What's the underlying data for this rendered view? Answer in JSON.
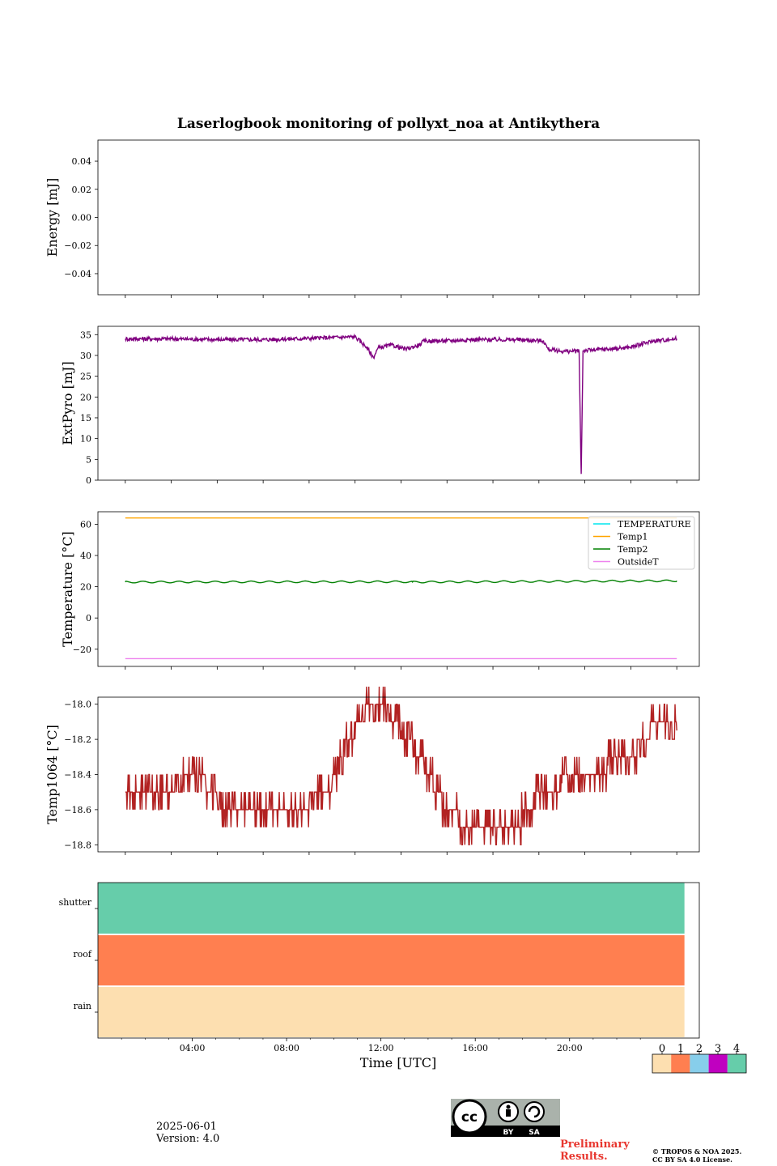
{
  "figure": {
    "title": "Laserlogbook monitoring of pollyxt_noa at Antikythera",
    "xlabel": "Time [UTC]",
    "x_tick_labels": [
      "04:00",
      "08:00",
      "12:00",
      "16:00",
      "20:00"
    ]
  },
  "chart_data": [
    {
      "type": "line",
      "ylabel": "Energy [mJ]",
      "ylim": [
        -0.055,
        0.055
      ],
      "yticks": [
        0.04,
        0.02,
        0.0,
        -0.02,
        -0.04
      ],
      "ytick_labels": [
        "0.04",
        "0.02",
        "0.00",
        "−0.02",
        "−0.04"
      ],
      "series": []
    },
    {
      "type": "line",
      "ylabel": "ExtPyro [mJ]",
      "ylim": [
        0,
        37
      ],
      "yticks": [
        0,
        5,
        10,
        15,
        20,
        25,
        30,
        35
      ],
      "ytick_labels": [
        "0",
        "5",
        "10",
        "15",
        "20",
        "25",
        "30",
        "35"
      ],
      "series": [
        {
          "color": "#800080",
          "points": [
            [
              1.0,
              34.0
            ],
            [
              3.0,
              34.0
            ],
            [
              5.0,
              33.8
            ],
            [
              7.0,
              33.8
            ],
            [
              9.0,
              34.1
            ],
            [
              11.0,
              34.5
            ],
            [
              11.5,
              32.0
            ],
            [
              11.8,
              29.5
            ],
            [
              12.0,
              31.8
            ],
            [
              12.6,
              32.5
            ],
            [
              13.2,
              31.5
            ],
            [
              13.8,
              32.5
            ],
            [
              14.0,
              33.5
            ],
            [
              15.0,
              33.5
            ],
            [
              16.0,
              33.8
            ],
            [
              18.0,
              33.8
            ],
            [
              19.2,
              33.5
            ],
            [
              19.4,
              31.5
            ],
            [
              20.0,
              31.0
            ],
            [
              20.5,
              31.0
            ],
            [
              20.75,
              31.0
            ],
            [
              20.84,
              1.5
            ],
            [
              20.92,
              31.2
            ],
            [
              21.3,
              31.3
            ],
            [
              22.0,
              31.5
            ],
            [
              23.0,
              32.0
            ],
            [
              24.0,
              33.5
            ],
            [
              25.0,
              34.0
            ]
          ],
          "noise": 1.0
        }
      ]
    },
    {
      "type": "line",
      "ylabel": "Temperature [°C]",
      "ylim": [
        -31,
        68
      ],
      "yticks": [
        60,
        40,
        20,
        0,
        -20
      ],
      "ytick_labels": [
        "60",
        "40",
        "20",
        "0",
        "−20"
      ],
      "legend": {
        "placement": "upper-right",
        "entries": [
          "TEMPERATURE",
          "Temp1",
          "Temp2",
          "OutsideT"
        ]
      },
      "series": [
        {
          "name": "TEMPERATURE",
          "color": "#00e5ee",
          "points": []
        },
        {
          "name": "Temp1",
          "color": "#ffa500",
          "points": [
            [
              1.0,
              64.0
            ],
            [
              25.0,
              64.0
            ]
          ]
        },
        {
          "name": "Temp2",
          "color": "#008000",
          "points": [
            [
              1.0,
              23.0
            ],
            [
              13.0,
              23.2
            ],
            [
              13.5,
              23.0
            ],
            [
              25.0,
              23.8
            ]
          ],
          "wave": 0.9
        },
        {
          "name": "OutsideT",
          "color": "#ee82ee",
          "points": [
            [
              1.0,
              -26.0
            ],
            [
              25.0,
              -26.0
            ]
          ]
        }
      ]
    },
    {
      "type": "line",
      "ylabel": "Temp1064 [°C]",
      "ylim": [
        -18.84,
        -17.96
      ],
      "yticks": [
        -18.0,
        -18.2,
        -18.4,
        -18.6,
        -18.8
      ],
      "ytick_labels": [
        "−18.0",
        "−18.2",
        "−18.4",
        "−18.6",
        "−18.8"
      ],
      "series": [
        {
          "color": "#b22222",
          "points": [
            [
              1.0,
              -18.5
            ],
            [
              2.0,
              -18.5
            ],
            [
              3.5,
              -18.45
            ],
            [
              4.5,
              -18.45
            ],
            [
              5.0,
              -18.55
            ],
            [
              6.0,
              -18.6
            ],
            [
              8.0,
              -18.6
            ],
            [
              9.0,
              -18.55
            ],
            [
              10.0,
              -18.45
            ],
            [
              10.7,
              -18.2
            ],
            [
              11.3,
              -18.05
            ],
            [
              12.0,
              -18.0
            ],
            [
              12.5,
              -18.05
            ],
            [
              13.0,
              -18.15
            ],
            [
              14.0,
              -18.35
            ],
            [
              15.0,
              -18.6
            ],
            [
              16.0,
              -18.7
            ],
            [
              17.0,
              -18.75
            ],
            [
              18.0,
              -18.7
            ],
            [
              18.5,
              -18.6
            ],
            [
              19.0,
              -18.5
            ],
            [
              20.0,
              -18.45
            ],
            [
              21.0,
              -18.45
            ],
            [
              22.0,
              -18.35
            ],
            [
              23.0,
              -18.3
            ],
            [
              24.0,
              -18.1
            ],
            [
              25.0,
              -18.15
            ]
          ],
          "step": 0.1
        }
      ]
    },
    {
      "type": "heatmap",
      "rows": [
        "shutter",
        "roof",
        "rain"
      ],
      "row_values": [
        4,
        1,
        0
      ],
      "x_end": 24.87,
      "xlim": [
        0,
        25.5
      ],
      "colorbar": {
        "labels": [
          "0",
          "1",
          "2",
          "3",
          "4"
        ],
        "colors": [
          "#fddfb0",
          "#ff7f50",
          "#87ceeb",
          "#c000c0",
          "#66cdaa"
        ]
      }
    }
  ],
  "footer": {
    "date": "2025-06-01",
    "version": "Version: 4.0",
    "preliminary": "Preliminary Results.",
    "copyright_line1": "© TROPOS & NOA 2025.",
    "copyright_line2": "CC BY SA 4.0 License.",
    "cc_by": "BY",
    "cc_sa": "SA"
  }
}
